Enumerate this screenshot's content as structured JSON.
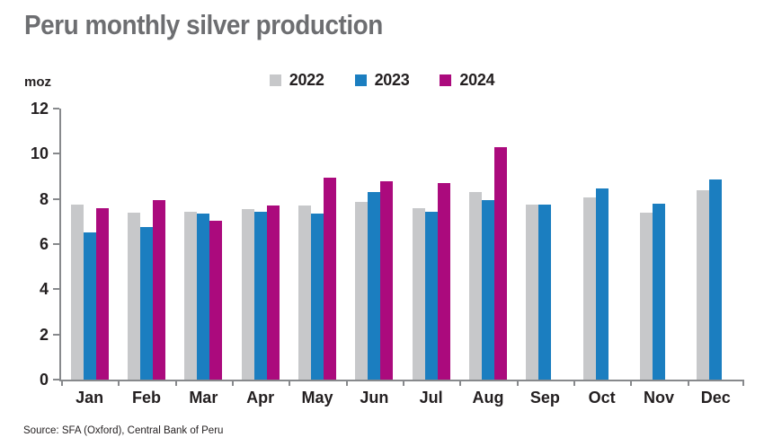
{
  "header": {
    "title": "Peru monthly silver production"
  },
  "source_note": "Source: SFA (Oxford), Central Bank of Peru",
  "colors": {
    "title_gray": "#6d6e71",
    "axis_gray": "#87898c",
    "text_black": "#231f20",
    "series_2022": "#c7c8ca",
    "series_2023": "#1b7ec0",
    "series_2024": "#ab0a7d"
  },
  "chart_data": {
    "type": "bar",
    "title": "Peru monthly silver production",
    "xlabel": "",
    "ylabel": "moz",
    "ylim": [
      0,
      12
    ],
    "yticks": [
      0,
      2,
      4,
      6,
      8,
      10,
      12
    ],
    "grid": false,
    "legend_position": "top-center",
    "categories": [
      "Jan",
      "Feb",
      "Mar",
      "Apr",
      "May",
      "Jun",
      "Jul",
      "Aug",
      "Sep",
      "Oct",
      "Nov",
      "Dec"
    ],
    "series": [
      {
        "name": "2022",
        "color": "#c7c8ca",
        "values": [
          7.75,
          7.4,
          7.45,
          7.55,
          7.7,
          7.85,
          7.6,
          8.3,
          7.75,
          8.05,
          7.4,
          8.4
        ]
      },
      {
        "name": "2023",
        "color": "#1b7ec0",
        "values": [
          6.5,
          6.75,
          7.35,
          7.45,
          7.35,
          8.3,
          7.45,
          7.95,
          7.75,
          8.45,
          7.8,
          8.85
        ]
      },
      {
        "name": "2024",
        "color": "#ab0a7d",
        "values": [
          7.6,
          7.95,
          7.05,
          7.7,
          8.95,
          8.8,
          8.7,
          10.3,
          null,
          null,
          null,
          null
        ]
      }
    ]
  }
}
